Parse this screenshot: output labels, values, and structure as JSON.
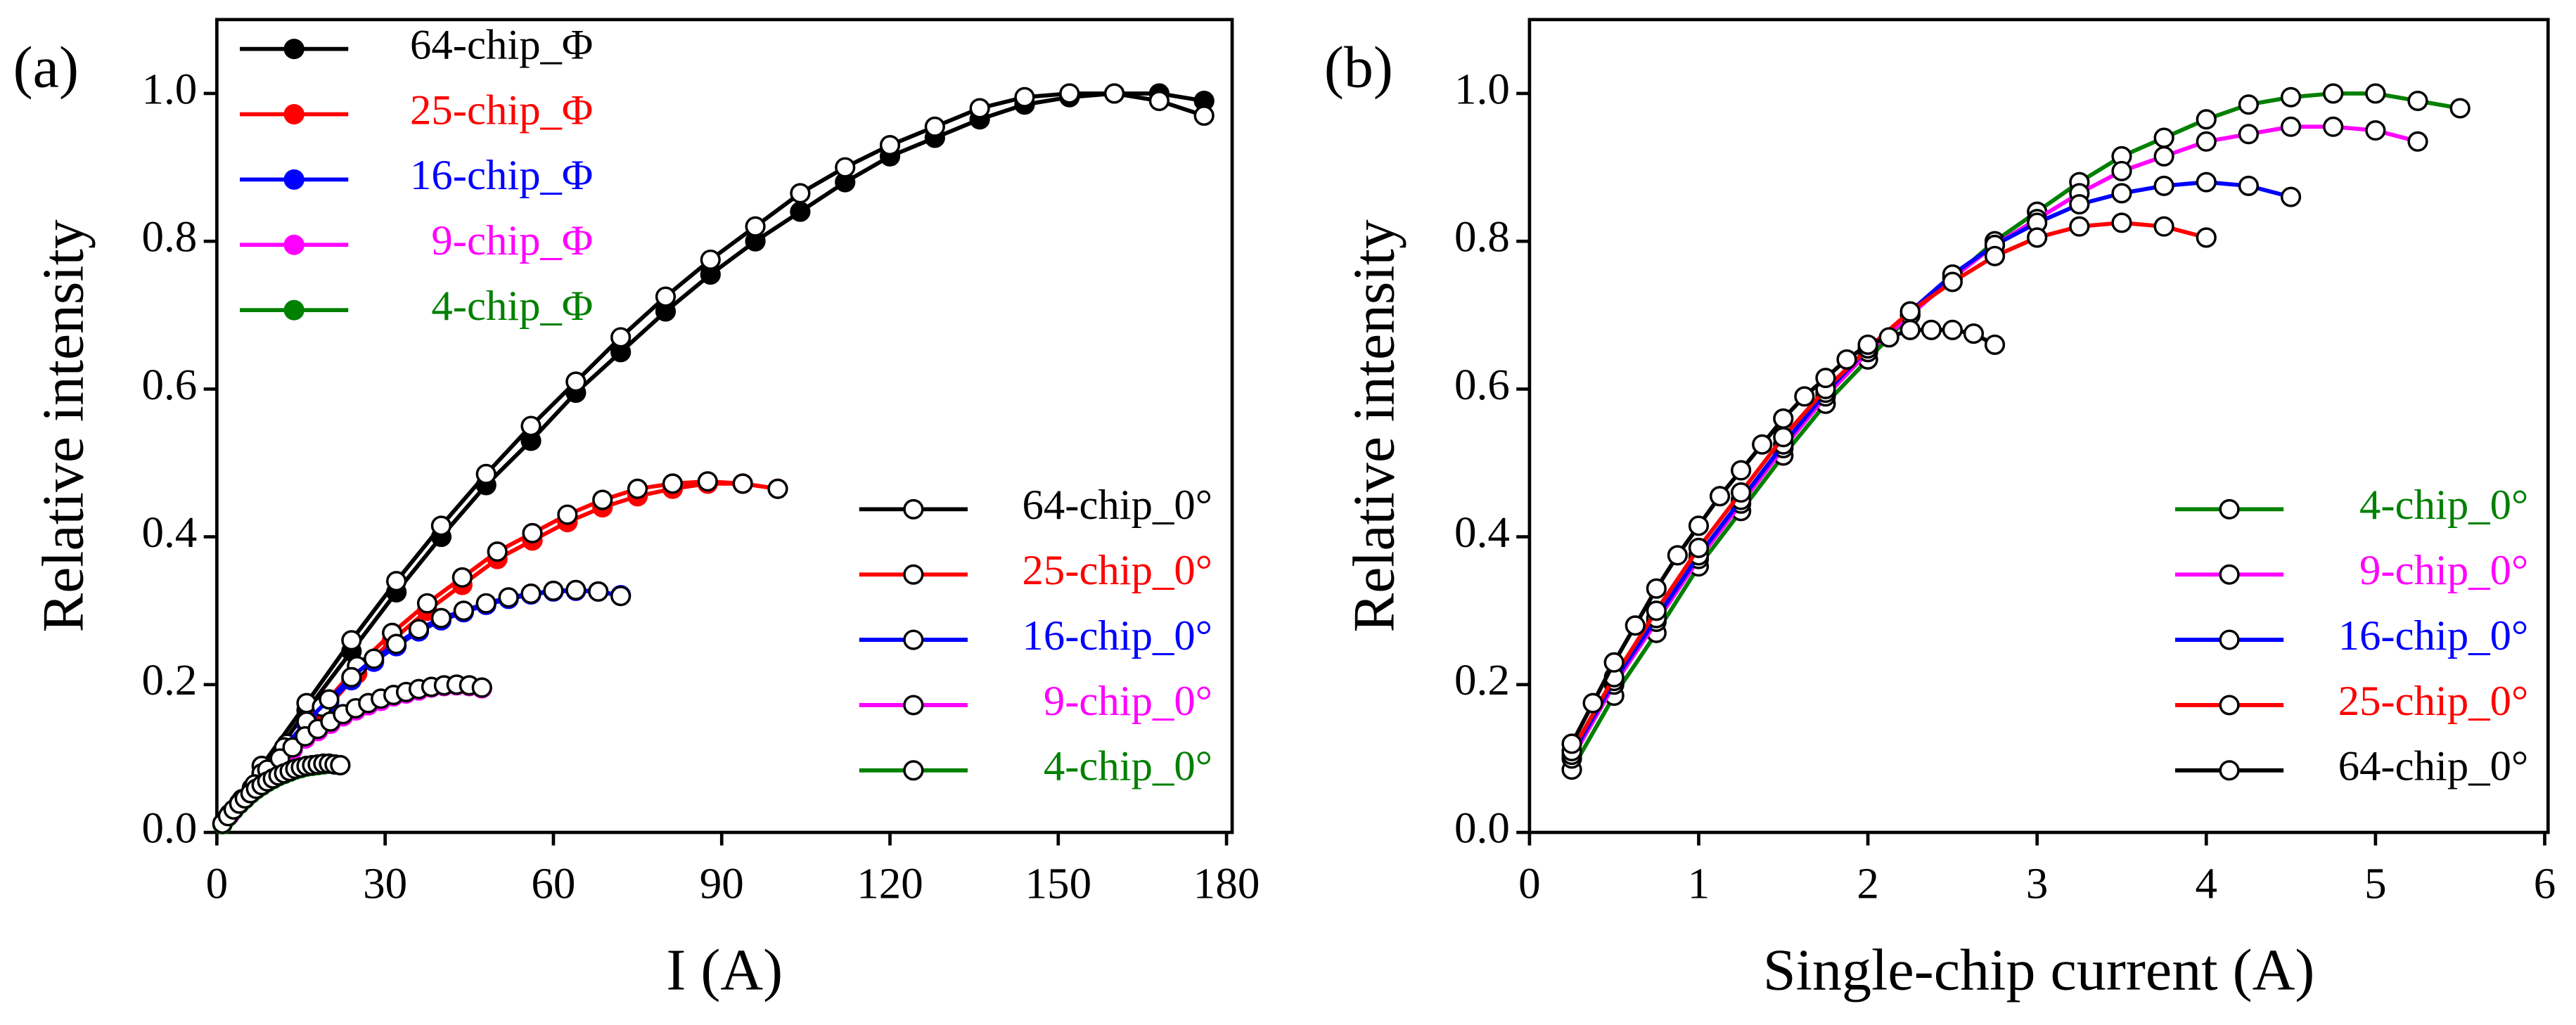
{
  "chart_data": [
    {
      "type": "line",
      "label": "(a)",
      "xlabel": "I (A)",
      "ylabel": "Relative intensity",
      "xlim": [
        0,
        181
      ],
      "xticks": [
        0,
        30,
        60,
        90,
        120,
        150,
        180
      ],
      "ylim": [
        0,
        1.1
      ],
      "yticks": [
        {
          "value": 0,
          "label": "0.0"
        },
        {
          "value": 0.2,
          "label": "0.2"
        },
        {
          "value": 0.4,
          "label": "0.4"
        },
        {
          "value": 0.6,
          "label": "0.6"
        },
        {
          "value": 0.8,
          "label": "0.8"
        },
        {
          "value": 1.0,
          "label": "1.0"
        }
      ],
      "legend_loc": {
        "filled": "upper left",
        "open": "lower right"
      },
      "series": [
        {
          "name": "64-chip_Φ",
          "color": "#000000",
          "marker": "filled",
          "x": [
            8,
            16,
            24,
            32,
            40,
            48,
            56,
            64,
            72,
            80,
            88,
            96,
            104,
            112,
            120,
            128,
            136,
            144,
            152,
            160,
            168,
            176
          ],
          "values": [
            0.08,
            0.165,
            0.245,
            0.325,
            0.4,
            0.47,
            0.53,
            0.595,
            0.65,
            0.705,
            0.755,
            0.8,
            0.84,
            0.88,
            0.915,
            0.94,
            0.965,
            0.985,
            0.995,
            1.0,
            1.0,
            0.99
          ]
        },
        {
          "name": "25-chip_Φ",
          "color": "#ff0000",
          "marker": "filled",
          "x": [
            6.25,
            12.5,
            18.75,
            25,
            31.25,
            37.5,
            43.75,
            50,
            56.25,
            62.5,
            68.75,
            75,
            81.25,
            87.5,
            93.75,
            100
          ],
          "values": [
            0.055,
            0.11,
            0.16,
            0.215,
            0.26,
            0.3,
            0.335,
            0.37,
            0.395,
            0.42,
            0.44,
            0.455,
            0.465,
            0.472,
            0.472,
            0.465
          ]
        },
        {
          "name": "16-chip_Φ",
          "color": "#0000ff",
          "marker": "filled",
          "x": [
            4,
            8,
            12,
            16,
            20,
            24,
            28,
            32,
            36,
            40,
            44,
            48,
            52,
            56,
            60,
            64,
            68,
            72
          ],
          "values": [
            0.038,
            0.077,
            0.112,
            0.146,
            0.176,
            0.206,
            0.231,
            0.252,
            0.272,
            0.287,
            0.298,
            0.308,
            0.316,
            0.322,
            0.326,
            0.327,
            0.326,
            0.321
          ]
        },
        {
          "name": "9-chip_Φ",
          "color": "#ff00ff",
          "marker": "filled",
          "x": [
            2.25,
            4.5,
            6.75,
            9,
            11.25,
            13.5,
            15.75,
            18,
            20.25,
            22.5,
            24.75,
            27,
            29.25,
            31.5,
            33.75,
            36,
            38.25,
            40.5,
            42.75,
            45,
            47.25
          ],
          "values": [
            0.023,
            0.043,
            0.062,
            0.082,
            0.097,
            0.112,
            0.127,
            0.137,
            0.147,
            0.157,
            0.165,
            0.172,
            0.178,
            0.184,
            0.188,
            0.192,
            0.196,
            0.198,
            0.199,
            0.198,
            0.195
          ]
        },
        {
          "name": "4-chip_Φ",
          "color": "#008000",
          "marker": "filled",
          "x": [
            1,
            2,
            3,
            4,
            5,
            6,
            7,
            8,
            9,
            10,
            11,
            12,
            13,
            14,
            15,
            16,
            17,
            18,
            19,
            20,
            21,
            22
          ],
          "values": [
            0.011,
            0.021,
            0.03,
            0.038,
            0.045,
            0.052,
            0.058,
            0.063,
            0.068,
            0.072,
            0.076,
            0.079,
            0.082,
            0.085,
            0.087,
            0.089,
            0.09,
            0.091,
            0.092,
            0.093,
            0.092,
            0.091
          ]
        },
        {
          "name": "64-chip_0°",
          "color": "#000000",
          "marker": "open",
          "x": [
            8,
            16,
            24,
            32,
            40,
            48,
            56,
            64,
            72,
            80,
            88,
            96,
            104,
            112,
            120,
            128,
            136,
            144,
            152,
            160,
            168,
            176
          ],
          "values": [
            0.09,
            0.175,
            0.26,
            0.34,
            0.415,
            0.485,
            0.55,
            0.61,
            0.67,
            0.725,
            0.775,
            0.82,
            0.865,
            0.9,
            0.93,
            0.955,
            0.98,
            0.995,
            1.0,
            1.0,
            0.99,
            0.97
          ]
        },
        {
          "name": "25-chip_0°",
          "color": "#ff0000",
          "marker": "open",
          "x": [
            6.25,
            12.5,
            18.75,
            25,
            31.25,
            37.5,
            43.75,
            50,
            56.25,
            62.5,
            68.75,
            75,
            81.25,
            87.5,
            93.75,
            100
          ],
          "values": [
            0.06,
            0.12,
            0.17,
            0.225,
            0.27,
            0.31,
            0.345,
            0.38,
            0.405,
            0.43,
            0.45,
            0.465,
            0.472,
            0.475,
            0.472,
            0.465
          ]
        },
        {
          "name": "16-chip_0°",
          "color": "#0000ff",
          "marker": "open",
          "x": [
            4,
            8,
            12,
            16,
            20,
            24,
            28,
            32,
            36,
            40,
            44,
            48,
            52,
            56,
            60,
            64,
            68,
            72
          ],
          "values": [
            0.04,
            0.08,
            0.115,
            0.15,
            0.18,
            0.21,
            0.235,
            0.255,
            0.275,
            0.29,
            0.3,
            0.31,
            0.318,
            0.323,
            0.327,
            0.328,
            0.326,
            0.32
          ]
        },
        {
          "name": "9-chip_0°",
          "color": "#ff00ff",
          "marker": "open",
          "x": [
            2.25,
            4.5,
            6.75,
            9,
            11.25,
            13.5,
            15.75,
            18,
            20.25,
            22.5,
            24.75,
            27,
            29.25,
            31.5,
            33.75,
            36,
            38.25,
            40.5,
            42.75,
            45,
            47.25
          ],
          "values": [
            0.025,
            0.045,
            0.065,
            0.085,
            0.1,
            0.115,
            0.13,
            0.14,
            0.15,
            0.16,
            0.168,
            0.175,
            0.181,
            0.186,
            0.19,
            0.194,
            0.197,
            0.199,
            0.2,
            0.199,
            0.196
          ]
        },
        {
          "name": "4-chip_0°",
          "color": "#008000",
          "marker": "open",
          "x": [
            1,
            2,
            3,
            4,
            5,
            6,
            7,
            8,
            9,
            10,
            11,
            12,
            13,
            14,
            15,
            16,
            17,
            18,
            19,
            20,
            21,
            22
          ],
          "values": [
            0.012,
            0.022,
            0.031,
            0.039,
            0.046,
            0.053,
            0.059,
            0.064,
            0.069,
            0.073,
            0.077,
            0.08,
            0.083,
            0.086,
            0.088,
            0.09,
            0.091,
            0.092,
            0.093,
            0.093,
            0.092,
            0.091
          ]
        }
      ]
    },
    {
      "type": "line",
      "label": "(b)",
      "xlabel": "Single-chip current (A)",
      "ylabel": "Relative intensity",
      "xlim": [
        0,
        6.02
      ],
      "xticks": [
        0,
        1,
        2,
        3,
        4,
        5,
        6
      ],
      "ylim": [
        0,
        1.1
      ],
      "yticks": [
        {
          "value": 0,
          "label": "0.0"
        },
        {
          "value": 0.2,
          "label": "0.2"
        },
        {
          "value": 0.4,
          "label": "0.4"
        },
        {
          "value": 0.6,
          "label": "0.6"
        },
        {
          "value": 0.8,
          "label": "0.8"
        },
        {
          "value": 1.0,
          "label": "1.0"
        }
      ],
      "legend_loc": {
        "open": "lower right"
      },
      "series": [
        {
          "name": "4-chip_0°",
          "color": "#008000",
          "marker": "open",
          "x": [
            0.25,
            0.5,
            0.75,
            1,
            1.25,
            1.5,
            1.75,
            2,
            2.25,
            2.5,
            2.75,
            3,
            3.25,
            3.5,
            3.75,
            4,
            4.25,
            4.5,
            4.75,
            5,
            5.25,
            5.5
          ],
          "values": [
            0.085,
            0.185,
            0.27,
            0.36,
            0.435,
            0.51,
            0.58,
            0.64,
            0.7,
            0.75,
            0.8,
            0.84,
            0.88,
            0.915,
            0.94,
            0.965,
            0.985,
            0.995,
            1.0,
            1.0,
            0.99,
            0.98
          ]
        },
        {
          "name": "9-chip_0°",
          "color": "#ff00ff",
          "marker": "open",
          "x": [
            0.25,
            0.5,
            0.75,
            1,
            1.25,
            1.5,
            1.75,
            2,
            2.25,
            2.5,
            2.75,
            3,
            3.25,
            3.5,
            3.75,
            4,
            4.25,
            4.5,
            4.75,
            5,
            5.25
          ],
          "values": [
            0.1,
            0.2,
            0.285,
            0.37,
            0.445,
            0.52,
            0.59,
            0.65,
            0.7,
            0.75,
            0.795,
            0.83,
            0.865,
            0.895,
            0.915,
            0.935,
            0.945,
            0.955,
            0.955,
            0.95,
            0.935
          ]
        },
        {
          "name": "16-chip_0°",
          "color": "#0000ff",
          "marker": "open",
          "x": [
            0.25,
            0.5,
            0.75,
            1,
            1.25,
            1.5,
            1.75,
            2,
            2.25,
            2.5,
            2.75,
            3,
            3.25,
            3.5,
            3.75,
            4,
            4.25,
            4.5
          ],
          "values": [
            0.105,
            0.205,
            0.29,
            0.375,
            0.45,
            0.525,
            0.595,
            0.655,
            0.705,
            0.755,
            0.795,
            0.825,
            0.85,
            0.865,
            0.875,
            0.88,
            0.875,
            0.86
          ]
        },
        {
          "name": "25-chip_0°",
          "color": "#ff0000",
          "marker": "open",
          "x": [
            0.25,
            0.5,
            0.75,
            1,
            1.25,
            1.5,
            1.75,
            2,
            2.25,
            2.5,
            2.75,
            3,
            3.25,
            3.5,
            3.75,
            4
          ],
          "values": [
            0.11,
            0.21,
            0.3,
            0.385,
            0.46,
            0.535,
            0.6,
            0.655,
            0.705,
            0.745,
            0.78,
            0.805,
            0.82,
            0.825,
            0.82,
            0.805
          ]
        },
        {
          "name": "64-chip_0°",
          "color": "#000000",
          "marker": "open",
          "x": [
            0.25,
            0.375,
            0.5,
            0.625,
            0.75,
            0.875,
            1,
            1.125,
            1.25,
            1.375,
            1.5,
            1.625,
            1.75,
            1.875,
            2,
            2.125,
            2.25,
            2.375,
            2.5,
            2.625,
            2.75
          ],
          "values": [
            0.12,
            0.175,
            0.23,
            0.28,
            0.33,
            0.375,
            0.415,
            0.455,
            0.49,
            0.525,
            0.56,
            0.59,
            0.615,
            0.64,
            0.66,
            0.67,
            0.68,
            0.68,
            0.68,
            0.675,
            0.66
          ]
        }
      ]
    }
  ]
}
